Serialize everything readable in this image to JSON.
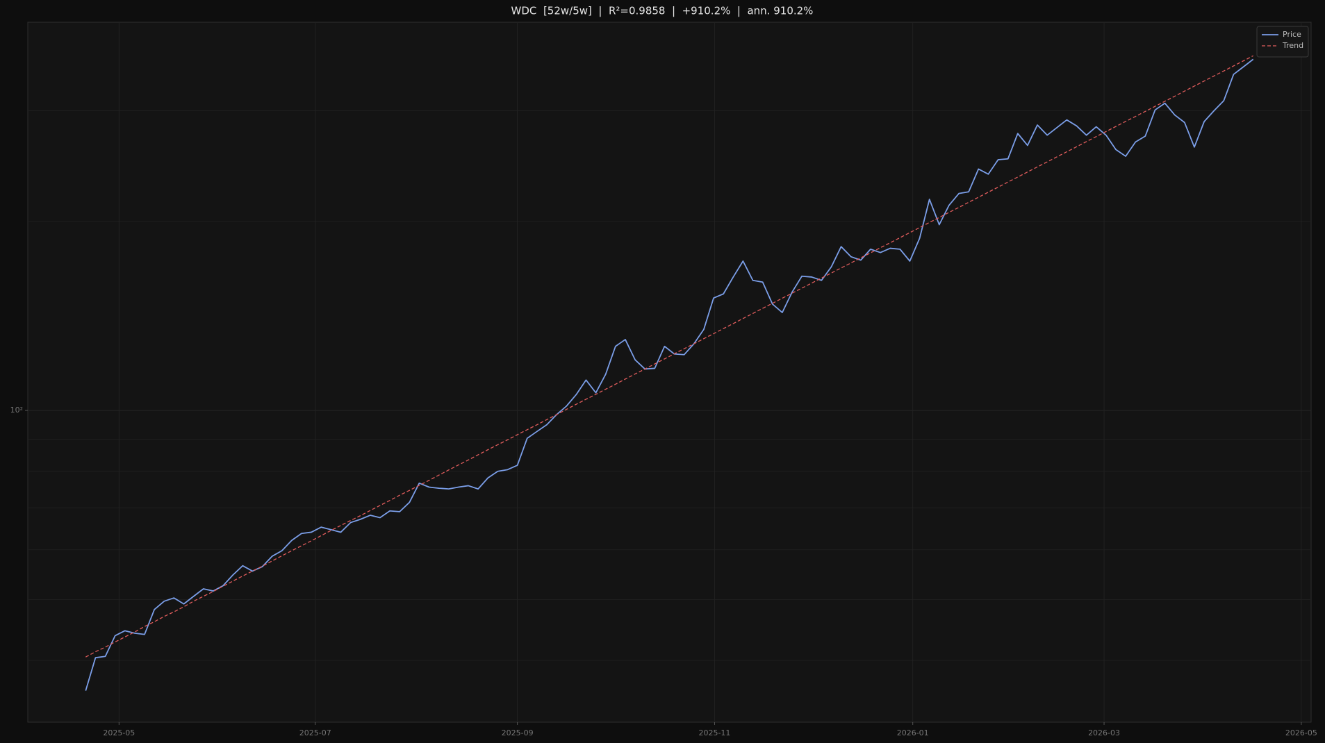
{
  "chart_data": {
    "type": "line",
    "title": "WDC  [52w/5w]  |  R²=0.9858  |  +910.2%  |  ann. 910.2%",
    "yscale": "log",
    "grid": true,
    "legend": "upper right",
    "xlim": [
      -5.9,
      124.9
    ],
    "xticks": [
      {
        "value": 3.4,
        "label": "2025-05"
      },
      {
        "value": 23.4,
        "label": "2025-07"
      },
      {
        "value": 44.0,
        "label": "2025-09"
      },
      {
        "value": 64.1,
        "label": "2025-11"
      },
      {
        "value": 84.3,
        "label": "2026-01"
      },
      {
        "value": 103.8,
        "label": "2026-03"
      },
      {
        "value": 123.9,
        "label": "2026-05"
      }
    ],
    "ylim": [
      31.9,
      415
    ],
    "yticks": [
      {
        "value": 100,
        "label": "10²"
      }
    ],
    "yminorticks": [
      40,
      50,
      60,
      70,
      80,
      90,
      200,
      300
    ],
    "series": [
      {
        "name": "Price",
        "color": "#7b9ee8",
        "dash": false,
        "values": [
          35.8,
          40.4,
          40.6,
          43.8,
          44.6,
          44.2,
          44.0,
          48.2,
          49.7,
          50.3,
          49.2,
          50.6,
          52.0,
          51.6,
          52.6,
          54.7,
          56.6,
          55.5,
          56.4,
          58.6,
          59.8,
          62.1,
          63.7,
          64.0,
          65.2,
          64.6,
          64.0,
          66.3,
          67.1,
          68.1,
          67.5,
          69.2,
          69.0,
          71.4,
          76.6,
          75.5,
          75.2,
          75.0,
          75.5,
          75.9,
          75.0,
          78.1,
          80.0,
          80.5,
          81.8,
          90.3,
          92.6,
          94.9,
          98.5,
          101.6,
          106.0,
          111.8,
          106.7,
          114.2,
          126.5,
          129.7,
          120.4,
          116.4,
          116.7,
          126.5,
          123.0,
          122.7,
          127.7,
          134.6,
          151.0,
          153.3,
          163.1,
          172.9,
          161.1,
          160.1,
          147.7,
          143.2,
          154.3,
          163.6,
          163.1,
          161.1,
          169.3,
          182.3,
          175.7,
          173.5,
          180.6,
          178.4,
          181.2,
          180.6,
          172.9,
          188.0,
          216.8,
          197.6,
          212.2,
          221.5,
          222.9,
          242.3,
          237.8,
          250.7,
          251.5,
          276.0,
          264.2,
          284.7,
          274.3,
          282.1,
          290.1,
          283.8,
          274.3,
          282.9,
          274.3,
          260.2,
          253.9,
          267.5,
          273.4,
          300.9,
          308.4,
          295.4,
          287.4,
          262.6,
          288.3,
          300.0,
          311.3,
          342.8,
          352.4,
          362.3
        ]
      },
      {
        "name": "Trend",
        "color": "#e05c5c",
        "dash": true,
        "values": [
          40.5,
          41.3,
          42.0,
          42.8,
          43.6,
          44.4,
          45.3,
          46.1,
          47.0,
          47.8,
          48.7,
          49.7,
          50.6,
          51.5,
          52.5,
          53.5,
          54.5,
          55.5,
          56.5,
          57.6,
          58.7,
          59.8,
          60.9,
          62.0,
          63.2,
          64.4,
          65.6,
          66.8,
          68.0,
          69.3,
          70.6,
          71.9,
          73.3,
          74.6,
          76.0,
          77.4,
          78.9,
          80.4,
          81.9,
          83.4,
          85.0,
          86.6,
          88.2,
          89.8,
          91.5,
          93.2,
          94.9,
          96.7,
          98.5,
          100.4,
          102.3,
          104.2,
          106.1,
          108.1,
          110.1,
          112.2,
          114.3,
          116.4,
          118.6,
          120.8,
          123.1,
          125.4,
          127.7,
          130.1,
          132.5,
          135.0,
          137.5,
          140.1,
          142.7,
          145.4,
          148.1,
          150.9,
          153.7,
          156.6,
          159.5,
          162.5,
          165.5,
          168.6,
          171.7,
          175.0,
          178.2,
          181.6,
          184.9,
          188.4,
          191.9,
          195.5,
          199.2,
          202.9,
          206.7,
          210.5,
          214.5,
          218.5,
          222.6,
          226.7,
          231.0,
          235.3,
          239.7,
          244.2,
          248.7,
          253.4,
          258.1,
          262.9,
          267.9,
          272.9,
          278.0,
          283.2,
          288.5,
          293.8,
          299.3,
          304.9,
          310.6,
          316.4,
          322.4,
          328.4,
          334.5,
          340.8,
          347.1,
          353.6,
          360.2,
          367.0
        ]
      }
    ]
  }
}
